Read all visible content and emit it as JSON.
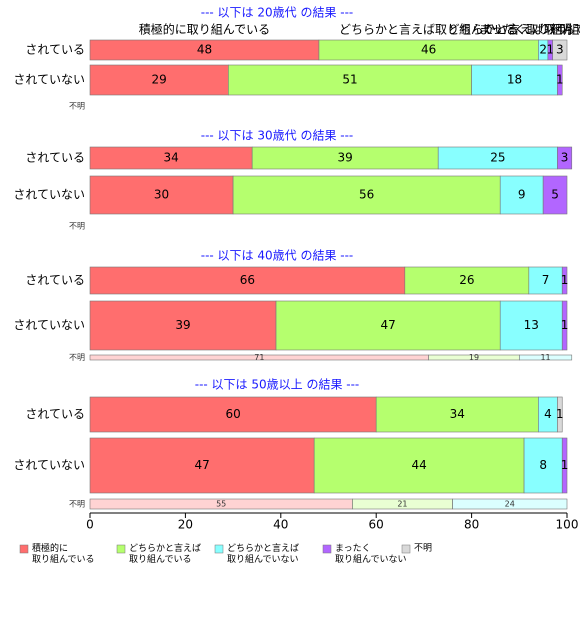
{
  "chart_data": {
    "type": "bar",
    "orientation": "horizontal",
    "stacked": true,
    "xlim": [
      0,
      100
    ],
    "xticks": [
      0,
      20,
      40,
      60,
      80,
      100
    ],
    "header_labels": [
      "積極的に取り組んでいる",
      "どちらかと言えば取り組んでいる",
      "どちらかと言えば取り組んでいない",
      "まったく取り組んでいない",
      "不明"
    ],
    "series": [
      {
        "name": "積極的に\n取り組んでいる",
        "color": "#FF6E6E"
      },
      {
        "name": "どちらかと言えば\n取り組んでいる",
        "color": "#B5FF6E"
      },
      {
        "name": "どちらかと言えば\n取り組んでいない",
        "color": "#88FFFF"
      },
      {
        "name": "まったく\n取り組んでいない",
        "color": "#B266FF"
      },
      {
        "name": "不明",
        "color": "#D9D9D9"
      }
    ],
    "panels": [
      {
        "title": "--- 以下は 20歳代 の結果 ---",
        "categories": [
          "されている",
          "されていない",
          "不明"
        ],
        "values": [
          [
            48,
            46,
            2,
            1,
            3
          ],
          [
            29,
            51,
            18,
            1,
            null
          ],
          [
            null,
            null,
            null,
            null,
            null
          ]
        ]
      },
      {
        "title": "--- 以下は 30歳代 の結果 ---",
        "categories": [
          "されている",
          "されていない",
          "不明"
        ],
        "values": [
          [
            34,
            39,
            25,
            3,
            null
          ],
          [
            30,
            56,
            9,
            5,
            null
          ],
          [
            null,
            null,
            null,
            null,
            null
          ]
        ]
      },
      {
        "title": "--- 以下は 40歳代 の結果 ---",
        "categories": [
          "されている",
          "されていない",
          "不明"
        ],
        "values": [
          [
            66,
            26,
            7,
            1,
            null
          ],
          [
            39,
            47,
            13,
            1,
            null
          ],
          [
            71,
            19,
            11,
            null,
            null
          ]
        ]
      },
      {
        "title": "--- 以下は 50歳以上 の結果 ---",
        "categories": [
          "されている",
          "されていない",
          "不明"
        ],
        "values": [
          [
            60,
            34,
            4,
            null,
            1
          ],
          [
            47,
            44,
            8,
            1,
            null
          ],
          [
            55,
            21,
            24,
            null,
            null
          ]
        ]
      }
    ]
  }
}
